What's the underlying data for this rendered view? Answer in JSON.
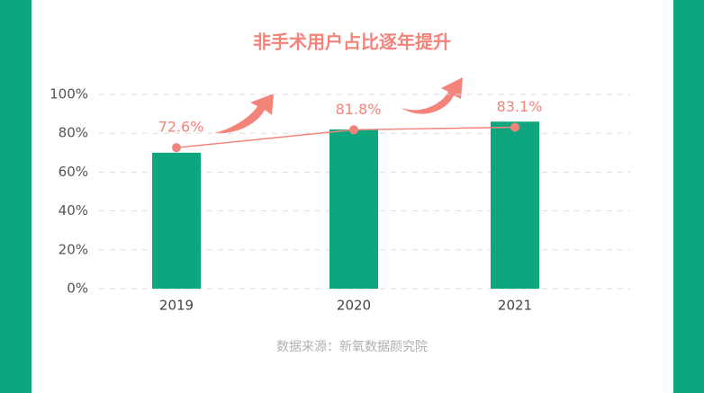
{
  "chart_data": {
    "type": "bar-line",
    "title": "非手术用户占比逐年提升",
    "source": "数据来源：新氧数据颜究院",
    "categories": [
      "2019",
      "2020",
      "2021"
    ],
    "series": [
      {
        "kind": "bar",
        "color": "#0ea67f",
        "values": [
          70,
          82,
          86
        ]
      },
      {
        "kind": "line",
        "color": "#f4837a",
        "values": [
          72.6,
          81.8,
          83.1
        ],
        "value_labels": [
          "72.6%",
          "81.8%",
          "83.1%"
        ]
      }
    ],
    "ylim": [
      0,
      100
    ],
    "yticks": [
      {
        "value": 0,
        "label": "0%"
      },
      {
        "value": 20,
        "label": "20%"
      },
      {
        "value": 40,
        "label": "40%"
      },
      {
        "value": 60,
        "label": "60%"
      },
      {
        "value": 80,
        "label": "80%"
      },
      {
        "value": 100,
        "label": "100%"
      }
    ],
    "grid": true
  }
}
